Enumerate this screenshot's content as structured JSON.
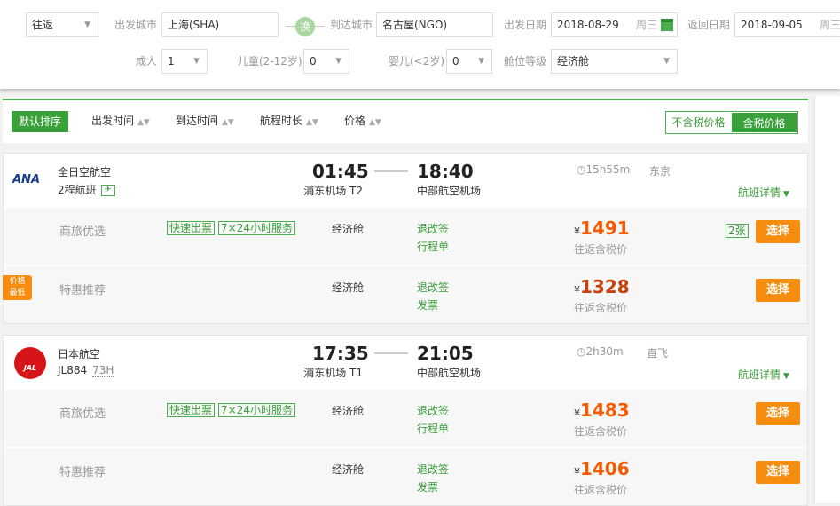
{
  "search": {
    "trip_type": "往返",
    "from_label": "出发城市",
    "from_value": "上海(SHA)",
    "swap_label": "换",
    "to_label": "到达城市",
    "to_value": "名古屋(NGO)",
    "depart_label": "出发日期",
    "depart_value": "2018-08-29",
    "depart_weekday": "周三",
    "return_label": "返回日期",
    "return_value": "2018-09-05",
    "return_weekday": "周三",
    "adult_label": "成人",
    "adult_value": "1",
    "child_label": "儿童(2-12岁)",
    "child_value": "0",
    "infant_label": "婴儿(<2岁)",
    "infant_value": "0",
    "cabin_label": "舱位等级",
    "cabin_value": "经济舱"
  },
  "sort": {
    "default": "默认排序",
    "items": [
      "出发时间",
      "到达时间",
      "航程时长",
      "价格"
    ],
    "excl_tax": "不含税价格",
    "incl_tax": "含税价格"
  },
  "colors": {
    "accent": "#3a9d3a",
    "price": "#f55a00",
    "button": "#f68d0f"
  },
  "flights": [
    {
      "logo": "ANA",
      "airline": "全日空航空",
      "sub": "2程航班",
      "sub_extra": "",
      "dep_time": "01:45",
      "dep_airport": "浦东机场 T2",
      "arr_time": "18:40",
      "arr_airport": "中部航空机场",
      "duration": "15h55m",
      "stop": "东京",
      "details": "航班详情",
      "fares": [
        {
          "label": "商旅优选",
          "tags": [
            "快速出票",
            "7×24小时服务"
          ],
          "cabin": "经济舱",
          "rule1": "退改签",
          "rule2": "行程单",
          "price": "1491",
          "currency": "¥",
          "price_note": "往返含税价",
          "seats": "2张",
          "select": "选择",
          "badge": ""
        },
        {
          "label": "特惠推荐",
          "tags": [],
          "cabin": "经济舱",
          "rule1": "退改签",
          "rule2": "发票",
          "price": "1328",
          "currency": "¥",
          "price_note": "往返含税价",
          "seats": "",
          "select": "选择",
          "badge": "价格最低"
        }
      ]
    },
    {
      "logo": "JAL",
      "airline": "日本航空",
      "sub": "JL884",
      "sub_extra": "73H",
      "dep_time": "17:35",
      "dep_airport": "浦东机场 T1",
      "arr_time": "21:05",
      "arr_airport": "中部航空机场",
      "duration": "2h30m",
      "stop": "直飞",
      "details": "航班详情",
      "fares": [
        {
          "label": "商旅优选",
          "tags": [
            "快速出票",
            "7×24小时服务"
          ],
          "cabin": "经济舱",
          "rule1": "退改签",
          "rule2": "行程单",
          "price": "1483",
          "currency": "¥",
          "price_note": "往返含税价",
          "seats": "",
          "select": "选择",
          "badge": ""
        },
        {
          "label": "特惠推荐",
          "tags": [],
          "cabin": "经济舱",
          "rule1": "退改签",
          "rule2": "发票",
          "price": "1406",
          "currency": "¥",
          "price_note": "往返含税价",
          "seats": "",
          "select": "选择",
          "badge": ""
        }
      ]
    }
  ]
}
